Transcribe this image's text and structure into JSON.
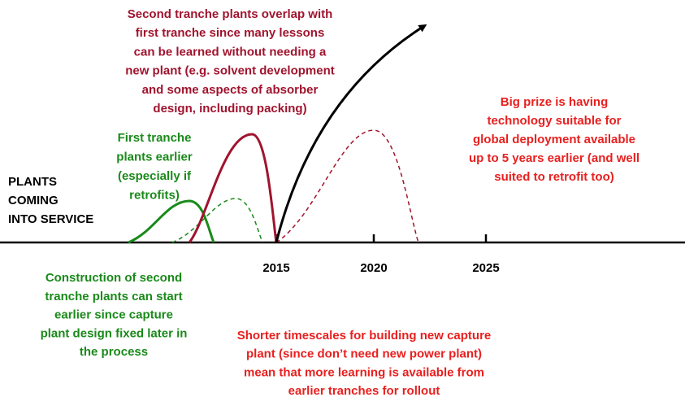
{
  "axis_label": [
    "PLANTS",
    "COMING",
    "INTO SERVICE"
  ],
  "axis_ticks": [
    "2015",
    "2020",
    "2025"
  ],
  "annotations": {
    "second_tranche_overlap": [
      "Second tranche plants overlap with",
      "first tranche since many lessons",
      "can be learned without needing a",
      "new plant (e.g. solvent development",
      "and some aspects of absorber",
      "design, including packing)"
    ],
    "first_tranche_earlier": [
      "First tranche",
      "plants earlier",
      "(especially if",
      "retrofits)"
    ],
    "big_prize": [
      "Big prize is having",
      "technology suitable for",
      "global deployment available",
      "up to 5 years earlier (and well",
      "suited to retrofit too)"
    ],
    "construction_earlier": [
      "Construction of second",
      "tranche plants can start",
      "earlier since capture",
      "plant design fixed later in",
      "the process"
    ],
    "shorter_timescales": [
      "Shorter timescales for building new capture",
      "plant (since don’t need new power plant)",
      "mean that more learning is available from",
      "earlier tranches for rollout"
    ]
  }
}
